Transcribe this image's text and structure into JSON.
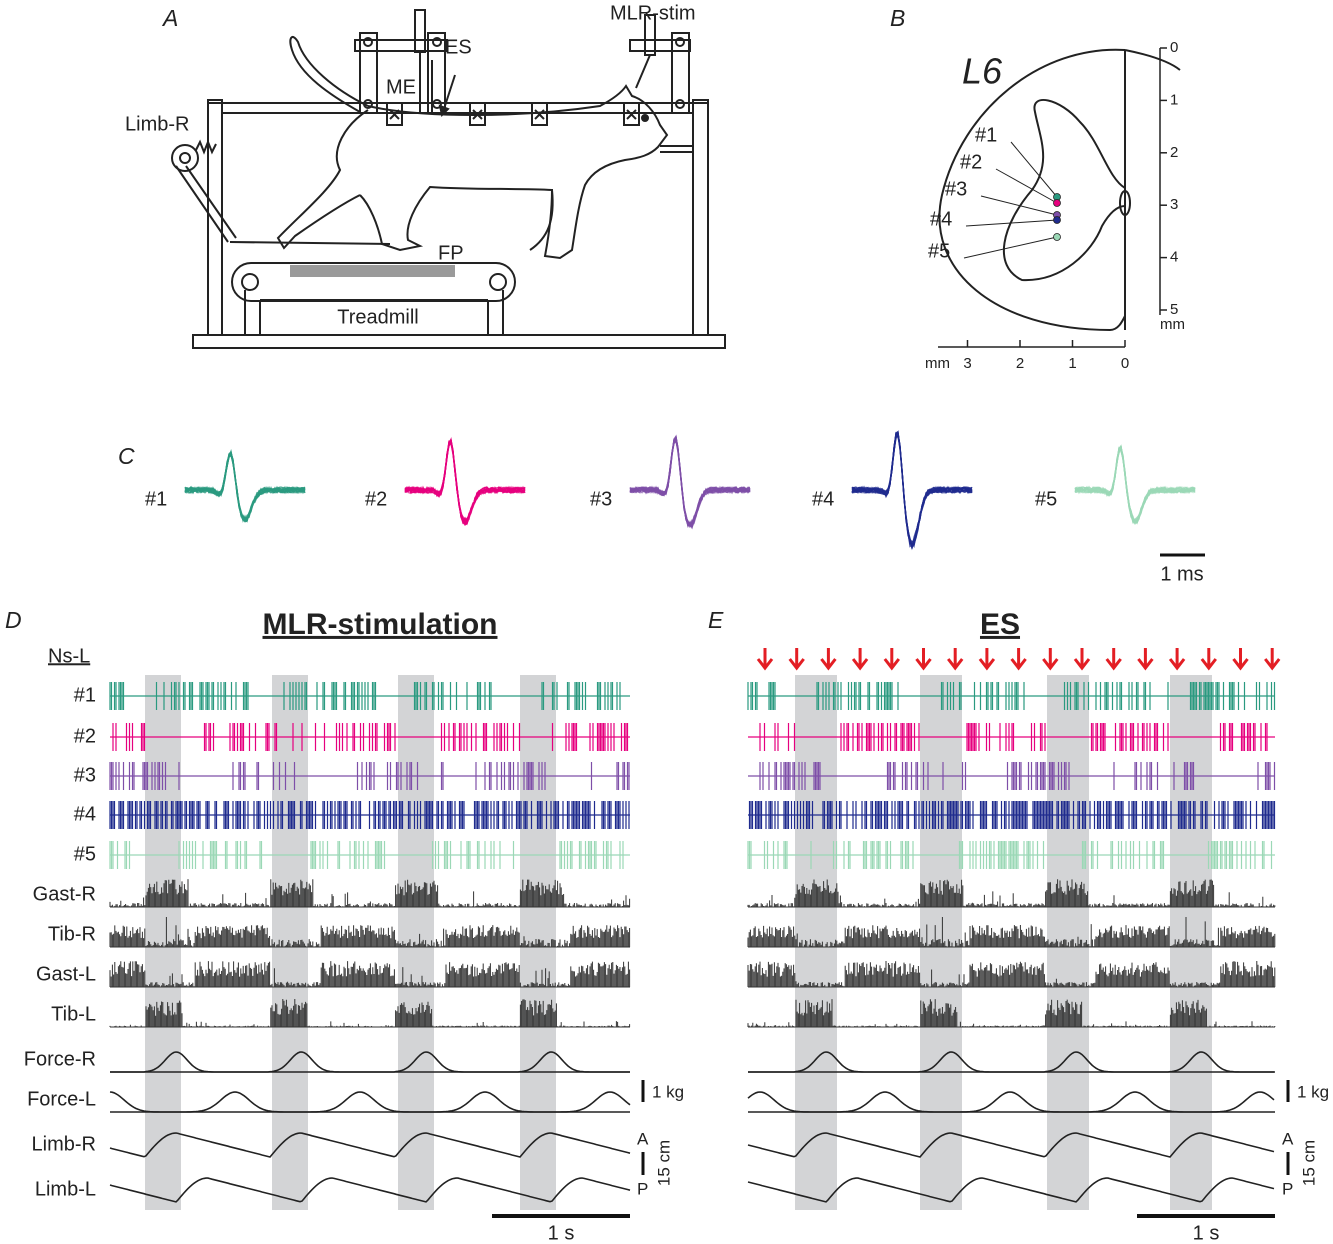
{
  "panel_a": {
    "letter": "A",
    "labels": {
      "mlr_stim": "MLR-stim",
      "me": "ME",
      "es": "ES",
      "limb_r": "Limb-R",
      "fp": "FP",
      "treadmill": "Treadmill"
    }
  },
  "panel_b": {
    "letter": "B",
    "segment": "L6",
    "electrodes": [
      "#1",
      "#2",
      "#3",
      "#4",
      "#5"
    ],
    "depth_ticks": [
      0,
      1,
      2,
      3,
      4,
      5
    ],
    "depth_unit": "mm",
    "lateral_ticks": [
      3,
      2,
      1,
      0
    ],
    "lateral_unit": "mm"
  },
  "panel_c": {
    "letter": "C",
    "units": [
      {
        "label": "#1",
        "color": "#2a9a80"
      },
      {
        "label": "#2",
        "color": "#e6007e"
      },
      {
        "label": "#3",
        "color": "#7e4fa8"
      },
      {
        "label": "#4",
        "color": "#1f2b8e"
      },
      {
        "label": "#5",
        "color": "#9bd8b6"
      }
    ],
    "scale": "1 ms"
  },
  "panel_d": {
    "letter": "D",
    "title": "MLR-stimulation",
    "group_label": "Ns-L"
  },
  "panel_e": {
    "letter": "E",
    "title": "ES"
  },
  "traces": {
    "channels": [
      "Gast-R",
      "Tib-R",
      "Gast-L",
      "Tib-L",
      "Force-R",
      "Force-L",
      "Limb-R",
      "Limb-L"
    ],
    "force_scale": "1 kg",
    "limb_anterior": "A",
    "limb_posterior": "P",
    "limb_scale": "15 cm",
    "time_scale": "1 s",
    "stim_color": "#e31e24",
    "band_color": "#d3d4d6"
  }
}
